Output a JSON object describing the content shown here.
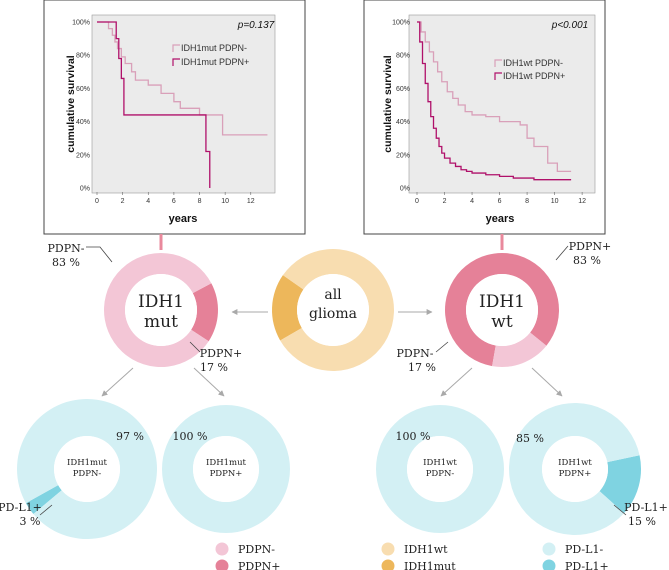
{
  "colors": {
    "pdpn_neg": "#F3C6D6",
    "pdpn_pos": "#E58198",
    "idh1wt": "#F8DDB0",
    "idh1mut": "#EDB75B",
    "pdl1_neg": "#D3F0F4",
    "pdl1_pos": "#7FD3E1",
    "km_neg_line": "#D9A0B9",
    "km_pos_line": "#B0106A",
    "connector": "#E9899C",
    "arrow": "#A9A9A9"
  },
  "chart_data": [
    {
      "id": "km_idh1mut",
      "type": "line",
      "title": "",
      "p_value": "p=0.137",
      "xlabel": "years",
      "ylabel": "cumulative survival",
      "xlim": [
        0,
        13.5
      ],
      "ylim": [
        0,
        100
      ],
      "xticks": [
        "0",
        "2",
        "4",
        "6",
        "8",
        "10",
        "12"
      ],
      "yticks": [
        "0%",
        "20%",
        "40%",
        "60%",
        "80%",
        "100%"
      ],
      "series": [
        {
          "name": "IDH1mut PDPN-",
          "color_key": "km_neg_line",
          "x": [
            0,
            0.9,
            1.2,
            1.4,
            1.6,
            1.9,
            2.2,
            2.7,
            3.0,
            4.0,
            5.0,
            6.0,
            6.5,
            8.0,
            9.8,
            13.3
          ],
          "y": [
            100,
            96,
            92,
            88,
            84,
            79,
            75,
            70,
            65,
            62,
            57,
            52,
            48,
            44,
            32,
            32
          ]
        },
        {
          "name": "IDH1mut PDPN+",
          "color_key": "km_pos_line",
          "x": [
            0,
            1.5,
            1.7,
            1.9,
            2.1,
            8.5,
            8.8,
            8.8
          ],
          "y": [
            100,
            90,
            78,
            66,
            44,
            22,
            0,
            0
          ]
        }
      ]
    },
    {
      "id": "km_idh1wt",
      "type": "line",
      "title": "",
      "p_value": "p<0.001",
      "xlabel": "years",
      "ylabel": "cumulative survival",
      "xlim": [
        0,
        12.5
      ],
      "ylim": [
        0,
        100
      ],
      "xticks": [
        "0",
        "2",
        "4",
        "6",
        "8",
        "10",
        "12"
      ],
      "yticks": [
        "0%",
        "20%",
        "40%",
        "60%",
        "80%",
        "100%"
      ],
      "series": [
        {
          "name": "IDH1wt PDPN-",
          "color_key": "km_neg_line",
          "x": [
            0,
            0.3,
            0.6,
            0.9,
            1.2,
            1.5,
            1.8,
            2.2,
            2.6,
            3.0,
            3.5,
            4.0,
            5.0,
            6.0,
            7.5,
            8.0,
            8.5,
            9.5,
            10.2,
            11.2
          ],
          "y": [
            100,
            94,
            88,
            82,
            76,
            70,
            64,
            58,
            54,
            50,
            46,
            44,
            43,
            40,
            38,
            30,
            25,
            15,
            10,
            10
          ]
        },
        {
          "name": "IDH1wt PDPN+",
          "color_key": "km_pos_line",
          "x": [
            0,
            0.2,
            0.4,
            0.6,
            0.8,
            1.0,
            1.2,
            1.4,
            1.6,
            1.8,
            2.0,
            2.4,
            2.8,
            3.2,
            3.6,
            4.0,
            5.0,
            6.0,
            7.0,
            8.5,
            11.2
          ],
          "y": [
            100,
            88,
            75,
            63,
            52,
            43,
            36,
            30,
            25,
            21,
            18,
            15,
            13,
            11,
            10,
            9,
            8,
            7,
            6,
            5,
            5
          ]
        }
      ]
    },
    {
      "id": "donut_all_glioma",
      "type": "pie",
      "center_label": [
        "all",
        "glioma"
      ],
      "slices": [
        {
          "name": "IDH1mut",
          "value": 18,
          "color_key": "idh1mut"
        },
        {
          "name": "IDH1wt",
          "value": 82,
          "color_key": "idh1wt"
        }
      ]
    },
    {
      "id": "donut_idh1mut",
      "type": "pie",
      "center_label": [
        "IDH1",
        "mut"
      ],
      "slices": [
        {
          "name": "PDPN+",
          "value": 17,
          "color_key": "pdpn_pos"
        },
        {
          "name": "PDPN-",
          "value": 83,
          "color_key": "pdpn_neg"
        }
      ]
    },
    {
      "id": "donut_idh1wt",
      "type": "pie",
      "center_label": [
        "IDH1",
        "wt"
      ],
      "slices": [
        {
          "name": "PDPN+",
          "value": 83,
          "color_key": "pdpn_pos"
        },
        {
          "name": "PDPN-",
          "value": 17,
          "color_key": "pdpn_neg"
        }
      ]
    },
    {
      "id": "donut_idh1mut_pdpn_neg",
      "type": "pie",
      "center_label": [
        "IDH1mut",
        "PDPN-"
      ],
      "slices": [
        {
          "name": "PD-L1+",
          "value": 3,
          "color_key": "pdl1_pos"
        },
        {
          "name": "PD-L1-",
          "value": 97,
          "color_key": "pdl1_neg"
        }
      ]
    },
    {
      "id": "donut_idh1mut_pdpn_pos",
      "type": "pie",
      "center_label": [
        "IDH1mut",
        "PDPN+"
      ],
      "slices": [
        {
          "name": "PD-L1-",
          "value": 100,
          "color_key": "pdl1_neg"
        }
      ]
    },
    {
      "id": "donut_idh1wt_pdpn_neg",
      "type": "pie",
      "center_label": [
        "IDH1wt",
        "PDPN-"
      ],
      "slices": [
        {
          "name": "PD-L1-",
          "value": 100,
          "color_key": "pdl1_neg"
        }
      ]
    },
    {
      "id": "donut_idh1wt_pdpn_pos",
      "type": "pie",
      "center_label": [
        "IDH1wt",
        "PDPN+"
      ],
      "slices": [
        {
          "name": "PD-L1+",
          "value": 15,
          "color_key": "pdl1_pos"
        },
        {
          "name": "PD-L1-",
          "value": 85,
          "color_key": "pdl1_neg"
        }
      ]
    }
  ],
  "annotations": {
    "idh1mut_pdpn_neg": [
      "PDPN-",
      "83 %"
    ],
    "idh1mut_pdpn_pos": [
      "PDPN+",
      "17 %"
    ],
    "idh1wt_pdpn_pos": [
      "PDPN+",
      "83 %"
    ],
    "idh1wt_pdpn_neg": [
      "PDPN-",
      "17 %"
    ],
    "mut_neg_pdl1_neg": "97 %",
    "mut_neg_pdl1_pos": [
      "PD-L1+",
      "3 %"
    ],
    "mut_pos_pdl1_neg": "100 %",
    "wt_neg_pdl1_neg": "100 %",
    "wt_pos_pdl1_neg": "85 %",
    "wt_pos_pdl1_pos": [
      "PD-L1+",
      "15 %"
    ]
  },
  "legend": [
    {
      "label": "PDPN-",
      "color_key": "pdpn_neg"
    },
    {
      "label": "PDPN+",
      "color_key": "pdpn_pos"
    },
    {
      "label": "IDH1wt",
      "color_key": "idh1wt"
    },
    {
      "label": "IDH1mut",
      "color_key": "idh1mut"
    },
    {
      "label": "PD-L1-",
      "color_key": "pdl1_neg"
    },
    {
      "label": "PD-L1+",
      "color_key": "pdl1_pos"
    }
  ]
}
